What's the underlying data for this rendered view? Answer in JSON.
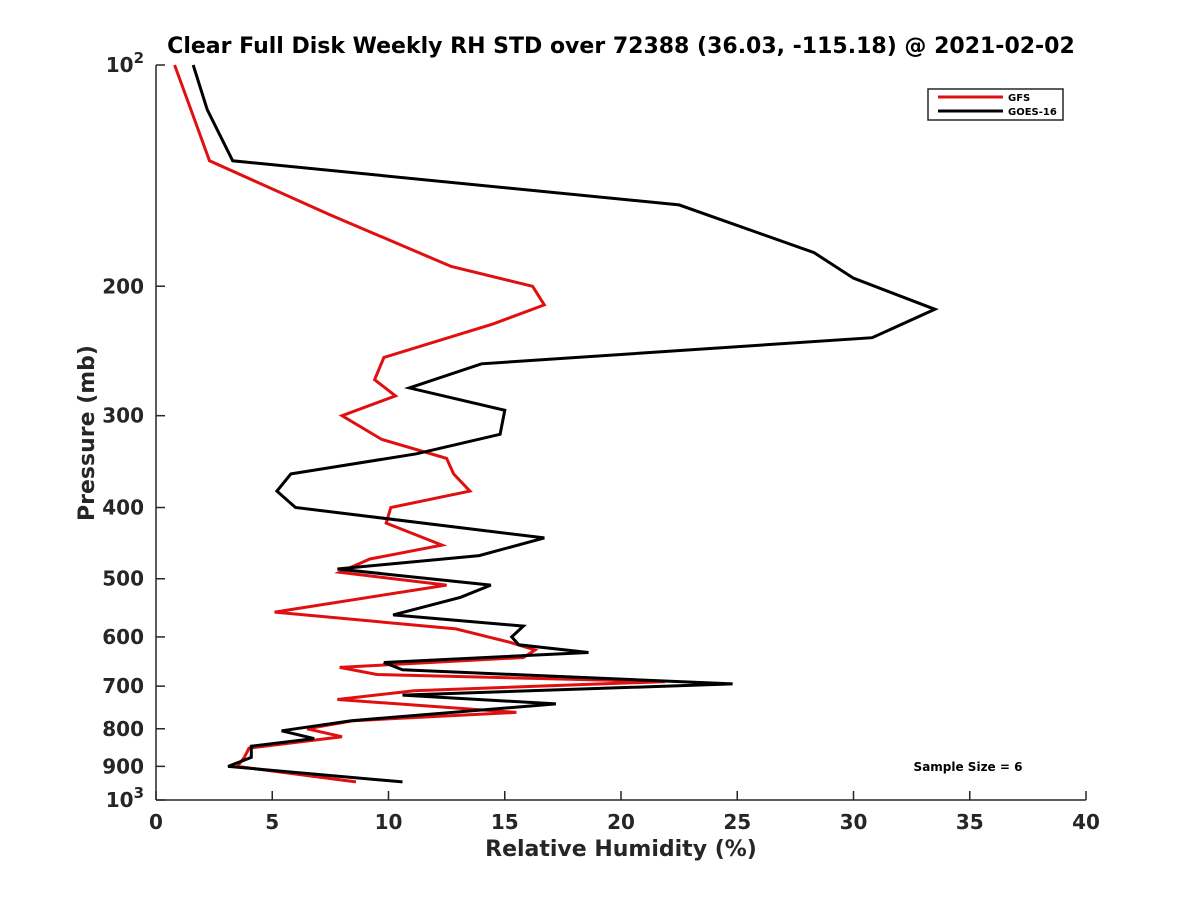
{
  "chart_data": {
    "type": "line",
    "title": "Clear Full Disk Weekly RH STD over 72388 (36.03, -115.18) @ 2021-02-02",
    "xlabel": "Relative Humidity (%)",
    "ylabel": "Pressure (mb)",
    "xlim": [
      0,
      40
    ],
    "ylim": [
      100,
      1000
    ],
    "y_scale": "log",
    "y_reversed": true,
    "grid": false,
    "legend_position": "top-right",
    "x_ticks": [
      0,
      5,
      10,
      15,
      20,
      25,
      30,
      35,
      40
    ],
    "x_tick_labels": [
      "0",
      "5",
      "10",
      "15",
      "20",
      "25",
      "30",
      "35",
      "40"
    ],
    "y_ticks": [
      100,
      200,
      300,
      400,
      500,
      600,
      700,
      800,
      900,
      1000
    ],
    "y_tick_labels": [
      {
        "base": "10",
        "exp": "2"
      },
      {
        "base": "200",
        "exp": ""
      },
      {
        "base": "300",
        "exp": ""
      },
      {
        "base": "400",
        "exp": ""
      },
      {
        "base": "500",
        "exp": ""
      },
      {
        "base": "600",
        "exp": ""
      },
      {
        "base": "700",
        "exp": ""
      },
      {
        "base": "800",
        "exp": ""
      },
      {
        "base": "900",
        "exp": ""
      },
      {
        "base": "10",
        "exp": "3"
      }
    ],
    "series": [
      {
        "name": "GFS",
        "color": "#e01010",
        "points": [
          [
            0.8,
            100
          ],
          [
            1.5,
            115
          ],
          [
            2.3,
            135
          ],
          [
            7.5,
            160
          ],
          [
            12.7,
            188
          ],
          [
            16.2,
            200
          ],
          [
            16.7,
            212
          ],
          [
            14.5,
            225
          ],
          [
            9.8,
            250
          ],
          [
            9.4,
            268
          ],
          [
            10.3,
            282
          ],
          [
            8.0,
            300
          ],
          [
            9.7,
            323
          ],
          [
            12.5,
            343
          ],
          [
            12.8,
            360
          ],
          [
            13.5,
            380
          ],
          [
            10.1,
            400
          ],
          [
            9.9,
            420
          ],
          [
            12.3,
            450
          ],
          [
            9.2,
            470
          ],
          [
            7.9,
            490
          ],
          [
            12.5,
            510
          ],
          [
            5.1,
            555
          ],
          [
            12.9,
            585
          ],
          [
            15.2,
            610
          ],
          [
            16.3,
            625
          ],
          [
            15.8,
            640
          ],
          [
            7.9,
            660
          ],
          [
            9.5,
            675
          ],
          [
            21.9,
            690
          ],
          [
            11.1,
            710
          ],
          [
            7.8,
            730
          ],
          [
            15.5,
            760
          ],
          [
            8.5,
            780
          ],
          [
            6.5,
            800
          ],
          [
            8.0,
            820
          ],
          [
            4.0,
            850
          ],
          [
            3.8,
            875
          ],
          [
            3.5,
            900
          ],
          [
            8.6,
            945
          ]
        ]
      },
      {
        "name": "GOES-16",
        "color": "#000000",
        "points": [
          [
            1.6,
            100
          ],
          [
            2.2,
            115
          ],
          [
            3.3,
            135
          ],
          [
            22.5,
            155
          ],
          [
            28.3,
            180
          ],
          [
            30.0,
            195
          ],
          [
            33.5,
            215
          ],
          [
            30.8,
            235
          ],
          [
            14.0,
            255
          ],
          [
            10.9,
            275
          ],
          [
            15.0,
            295
          ],
          [
            14.8,
            318
          ],
          [
            11.2,
            338
          ],
          [
            5.8,
            360
          ],
          [
            5.2,
            380
          ],
          [
            6.0,
            400
          ],
          [
            16.7,
            440
          ],
          [
            13.9,
            465
          ],
          [
            7.8,
            485
          ],
          [
            14.4,
            510
          ],
          [
            13.1,
            530
          ],
          [
            10.2,
            560
          ],
          [
            15.8,
            580
          ],
          [
            15.3,
            600
          ],
          [
            15.6,
            615
          ],
          [
            18.6,
            630
          ],
          [
            9.8,
            650
          ],
          [
            10.6,
            665
          ],
          [
            24.8,
            695
          ],
          [
            10.6,
            720
          ],
          [
            17.2,
            740
          ],
          [
            8.4,
            780
          ],
          [
            5.4,
            805
          ],
          [
            6.8,
            825
          ],
          [
            4.1,
            845
          ],
          [
            4.1,
            875
          ],
          [
            3.1,
            900
          ],
          [
            10.6,
            945
          ]
        ]
      }
    ],
    "annotations": [
      "Sample Size = 6"
    ]
  }
}
